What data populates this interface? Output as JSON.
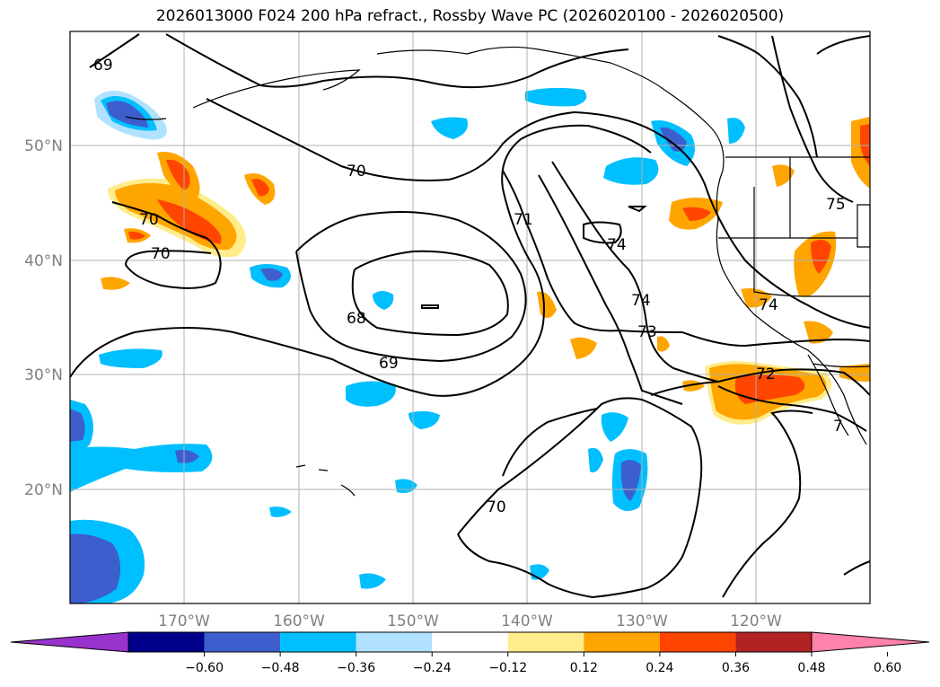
{
  "title": "2026013000 F024 200 hPa refract., Rossby Wave PC (2026020100 - 2026020500)",
  "lat_labels": [
    "50°N",
    "40°N",
    "30°N",
    "20°N"
  ],
  "lon_labels": [
    "170°W",
    "160°W",
    "150°W",
    "140°W",
    "130°W",
    "120°W"
  ],
  "contour_labels": [
    "69",
    "70",
    "70",
    "70",
    "71",
    "74",
    "74",
    "73",
    "68",
    "69",
    "72",
    "74",
    "75",
    "70",
    "7"
  ],
  "colorbar": {
    "ticks": [
      "−0.60",
      "−0.48",
      "−0.36",
      "−0.24",
      "−0.12",
      "0.12",
      "0.24",
      "0.36",
      "0.48",
      "0.60"
    ],
    "colors": [
      "#9932cc",
      "#00008b",
      "#3c5fcd",
      "#00bfff",
      "#b0e2ff",
      "#ffffff",
      "#ffec8b",
      "#ffa500",
      "#ff4500",
      "#b22222",
      "#ff82ab"
    ]
  }
}
